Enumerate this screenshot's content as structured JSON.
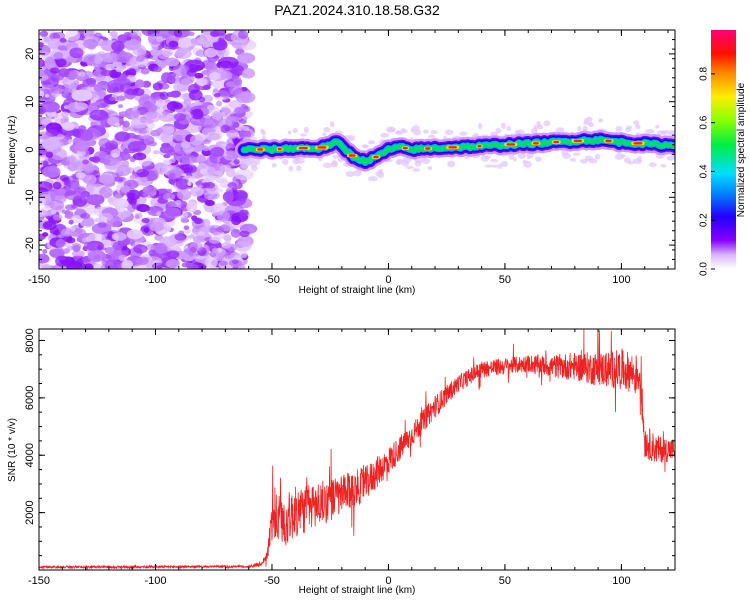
{
  "title": "PAZ1.2024.310.18.58.G32",
  "colors": {
    "snr_line": "#ee2222",
    "axis": "#000000"
  },
  "chart_data": [
    {
      "type": "heatmap",
      "xlabel": "Height of straight line (km)",
      "ylabel": "Frequency (Hz)",
      "xlim": [
        -150,
        123
      ],
      "ylim": [
        -25,
        25
      ],
      "x_ticks": [
        "-150",
        "-100",
        "-50",
        "0",
        "50",
        "100"
      ],
      "y_ticks": [
        "20",
        "10",
        "0",
        "-10",
        "-20"
      ],
      "colorbar": {
        "label": "Normalized spectral amplitude",
        "range": [
          0,
          1
        ],
        "ticks": [
          "0.0",
          "0.2",
          "0.4",
          "0.6",
          "0.8"
        ]
      },
      "noise_region_x": [
        -150,
        -62
      ],
      "ridge": {
        "x": [
          -62,
          -50,
          -40,
          -30,
          -22,
          -15,
          -10,
          -5,
          0,
          5,
          10,
          20,
          30,
          40,
          50,
          60,
          70,
          80,
          90,
          100,
          110,
          123
        ],
        "freq": [
          0,
          0,
          0.3,
          0.2,
          1.5,
          -1.5,
          -2.5,
          -1.5,
          0,
          0.5,
          0,
          0.3,
          0.5,
          0.7,
          1,
          1.2,
          1.5,
          1.8,
          2,
          1.5,
          1.2,
          0.8
        ]
      }
    },
    {
      "type": "line",
      "xlabel": "Height of straight line (km)",
      "ylabel": "SNR (10 * v/v)",
      "xlim": [
        -150,
        123
      ],
      "ylim": [
        0,
        8400
      ],
      "x_ticks": [
        "-150",
        "-100",
        "-50",
        "0",
        "50",
        "100"
      ],
      "y_ticks": [
        "8000",
        "6000",
        "4000",
        "2000"
      ],
      "series": [
        {
          "envelope_x": [
            -150,
            -60,
            -55,
            -52,
            -50,
            -45,
            -40,
            -30,
            -20,
            -10,
            0,
            10,
            20,
            30,
            40,
            50,
            60,
            70,
            80,
            90,
            100,
            108,
            110,
            115,
            123
          ],
          "envelope_y": [
            100,
            120,
            200,
            500,
            1800,
            1700,
            2000,
            2300,
            2600,
            3000,
            3800,
            4700,
            5700,
            6500,
            7000,
            7100,
            7200,
            7100,
            7100,
            7000,
            7000,
            6800,
            4500,
            4200,
            4200
          ],
          "noise_amplitude": [
            40,
            40,
            80,
            150,
            900,
            900,
            900,
            800,
            700,
            600,
            500,
            400,
            400,
            300,
            300,
            300,
            300,
            400,
            500,
            600,
            700,
            700,
            600,
            500,
            400
          ]
        }
      ]
    }
  ]
}
